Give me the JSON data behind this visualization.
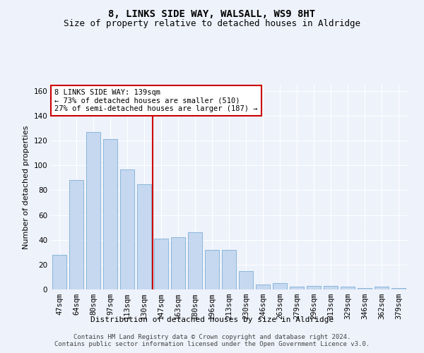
{
  "title": "8, LINKS SIDE WAY, WALSALL, WS9 8HT",
  "subtitle": "Size of property relative to detached houses in Aldridge",
  "xlabel": "Distribution of detached houses by size in Aldridge",
  "ylabel": "Number of detached properties",
  "categories": [
    "47sqm",
    "64sqm",
    "80sqm",
    "97sqm",
    "113sqm",
    "130sqm",
    "147sqm",
    "163sqm",
    "180sqm",
    "196sqm",
    "213sqm",
    "230sqm",
    "246sqm",
    "263sqm",
    "279sqm",
    "296sqm",
    "313sqm",
    "329sqm",
    "346sqm",
    "362sqm",
    "379sqm"
  ],
  "values": [
    28,
    88,
    127,
    121,
    97,
    85,
    41,
    42,
    46,
    32,
    32,
    15,
    4,
    5,
    2,
    3,
    3,
    2,
    1,
    2,
    1
  ],
  "bar_color": "#c5d8f0",
  "bar_edge_color": "#7bafd4",
  "vline_index": 6,
  "vline_color": "#cc0000",
  "annotation_line1": "8 LINKS SIDE WAY: 139sqm",
  "annotation_line2": "← 73% of detached houses are smaller (510)",
  "annotation_line3": "27% of semi-detached houses are larger (187) →",
  "annotation_box_color": "#ffffff",
  "annotation_box_edge_color": "#cc0000",
  "ylim": [
    0,
    165
  ],
  "yticks": [
    0,
    20,
    40,
    60,
    80,
    100,
    120,
    140,
    160
  ],
  "footer_line1": "Contains HM Land Registry data © Crown copyright and database right 2024.",
  "footer_line2": "Contains public sector information licensed under the Open Government Licence v3.0.",
  "background_color": "#eef2fb",
  "grid_color": "#ffffff",
  "title_fontsize": 10,
  "subtitle_fontsize": 9,
  "axis_label_fontsize": 8,
  "tick_fontsize": 7.5,
  "annotation_fontsize": 7.5,
  "footer_fontsize": 6.5
}
